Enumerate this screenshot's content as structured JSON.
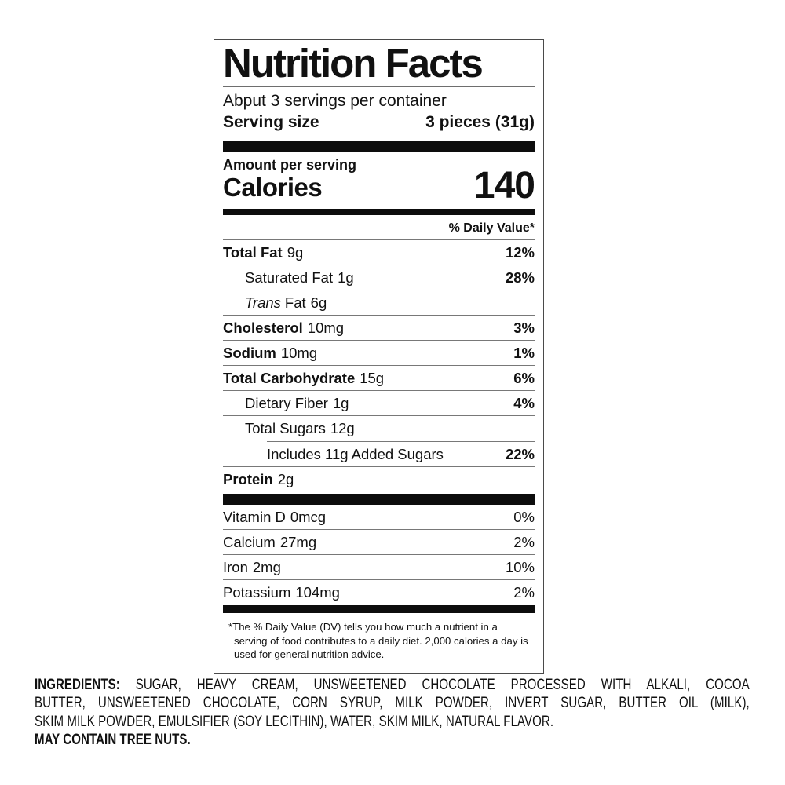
{
  "nutrition_label": {
    "title": "Nutrition Facts",
    "servings_line": "Abput 3 servings per container",
    "serving_size": {
      "label": "Serving size",
      "value": "3 pieces (31g)"
    },
    "amount_per_serving": "Amount per serving",
    "calories": {
      "label": "Calories",
      "value": "140"
    },
    "daily_value_header": "% Daily Value*",
    "nutrients": [
      {
        "name": "Total Fat",
        "amount": "9g",
        "dv": "12%"
      },
      {
        "name": "Saturated Fat",
        "amount": "1g",
        "dv": "28%"
      },
      {
        "name_italic": "Trans",
        "name": "Fat",
        "amount": "6g",
        "dv": ""
      },
      {
        "name": "Cholesterol",
        "amount": "10mg",
        "dv": "3%"
      },
      {
        "name": "Sodium",
        "amount": "10mg",
        "dv": "1%"
      },
      {
        "name": "Total Carbohydrate",
        "amount": "15g",
        "dv": "6%"
      },
      {
        "name": "Dietary Fiber",
        "amount": "1g",
        "dv": "4%"
      },
      {
        "name": "Total Sugars",
        "amount": "12g",
        "dv": ""
      },
      {
        "name": "Includes 11g Added Sugars",
        "amount": "",
        "dv": "22%"
      },
      {
        "name": "Protein",
        "amount": "2g",
        "dv": ""
      }
    ],
    "micronutrients": [
      {
        "name": "Vitamin D",
        "amount": "0mcg",
        "dv": "0%"
      },
      {
        "name": "Calcium",
        "amount": "27mg",
        "dv": "2%"
      },
      {
        "name": "Iron",
        "amount": "2mg",
        "dv": "10%"
      },
      {
        "name": "Potassium",
        "amount": "104mg",
        "dv": "2%"
      }
    ],
    "footnote": "*The % Daily Value (DV) tells you how much a nutrient in a serving of food contributes to a daily diet. 2,000 calories a day is used for general nutrition advice."
  },
  "ingredients": {
    "label": "INGREDIENTS:",
    "line1_rest": " SUGAR, HEAVY CREAM, UNSWEETENED CHOCOLATE PROCESSED WITH ALKALI, COCOA",
    "line2": "BUTTER, UNSWEETENED CHOCOLATE, CORN SYRUP, MILK POWDER, INVERT SUGAR, BUTTER OIL (MILK),",
    "line3": "SKIM MILK POWDER, EMULSIFIER (SOY LECITHIN), WATER, SKIM MILK, NATURAL FLAVOR.",
    "allergen": "MAY CONTAIN TREE NUTS."
  },
  "colors": {
    "text": "#111111",
    "background": "#ffffff",
    "separator_bar": "#0d0d0d",
    "hairline": "#787878"
  }
}
